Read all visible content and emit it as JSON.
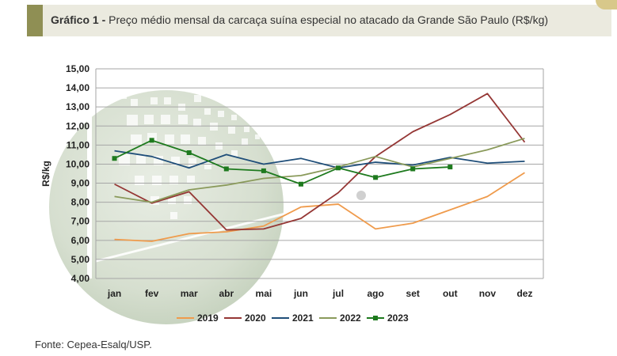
{
  "header": {
    "label": "Gráfico 1 -",
    "title": "Preço médio mensal da carcaça suína especial no atacado da Grande São Paulo (R$/kg)"
  },
  "source": "Fonte: Cepea-Esalq/USP.",
  "colors": {
    "accent": "#8f8f54",
    "header_bg": "#ebeadf",
    "grid": "#a6a6a6"
  },
  "chart_data": {
    "type": "line",
    "title": "Preço médio mensal da carcaça suína especial no atacado da Grande São Paulo (R$/kg)",
    "xlabel": "",
    "ylabel": "R$/kg",
    "ylim": [
      4,
      15
    ],
    "ytick_step": 1,
    "ytick_labels": [
      "4,00",
      "5,00",
      "6,00",
      "7,00",
      "8,00",
      "9,00",
      "10,00",
      "11,00",
      "12,00",
      "13,00",
      "14,00",
      "15,00"
    ],
    "categories": [
      "jan",
      "fev",
      "mar",
      "abr",
      "mai",
      "jun",
      "jul",
      "ago",
      "set",
      "out",
      "nov",
      "dez"
    ],
    "grid": true,
    "legend_position": "bottom",
    "series": [
      {
        "name": "2019",
        "color": "#ef9b4c",
        "marker": false,
        "values": [
          6.05,
          5.95,
          6.35,
          6.45,
          6.75,
          7.75,
          7.9,
          6.6,
          6.9,
          7.6,
          8.3,
          9.55
        ]
      },
      {
        "name": "2020",
        "color": "#953735",
        "marker": false,
        "values": [
          8.95,
          7.95,
          8.55,
          6.55,
          6.6,
          7.15,
          8.5,
          10.4,
          11.7,
          12.6,
          13.7,
          11.15
        ]
      },
      {
        "name": "2021",
        "color": "#1f4e79",
        "marker": false,
        "values": [
          10.7,
          10.4,
          9.8,
          10.5,
          10.0,
          10.3,
          9.8,
          10.1,
          9.95,
          10.35,
          10.05,
          10.15
        ]
      },
      {
        "name": "2022",
        "color": "#8a9a5b",
        "marker": false,
        "values": [
          8.3,
          8.0,
          8.65,
          8.9,
          9.25,
          9.4,
          9.85,
          10.4,
          9.85,
          10.3,
          10.75,
          11.35
        ]
      },
      {
        "name": "2023",
        "color": "#1e7a1e",
        "marker": true,
        "values": [
          10.3,
          11.25,
          10.6,
          9.75,
          9.65,
          8.95,
          9.8,
          9.3,
          9.75,
          9.85,
          null,
          null
        ]
      }
    ]
  }
}
